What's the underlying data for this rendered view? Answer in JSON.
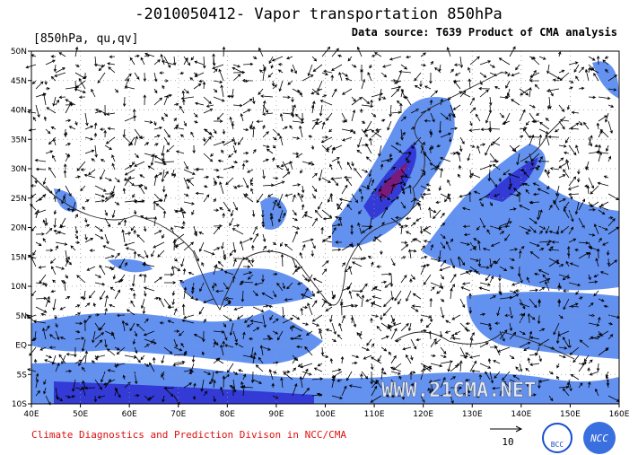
{
  "chart_data": {
    "type": "map",
    "title": "-2010050412- Vapor transportation 850hPa",
    "subtitle": "[850hPa, qu,qv]",
    "source": "Data source: T639 Product of CMA analysis",
    "footer": "Climate Diagnostics and Prediction Divison in NCC/CMA",
    "vector_scale": "10",
    "watermark": "WWW.21CMA.NET",
    "logos": [
      "BCC",
      "NCC"
    ],
    "xlim": [
      40,
      160
    ],
    "xticks": [
      {
        "value": 40,
        "label": "40E"
      },
      {
        "value": 50,
        "label": "50E"
      },
      {
        "value": 60,
        "label": "60E"
      },
      {
        "value": 70,
        "label": "70E"
      },
      {
        "value": 80,
        "label": "80E"
      },
      {
        "value": 90,
        "label": "90E"
      },
      {
        "value": 100,
        "label": "100E"
      },
      {
        "value": 110,
        "label": "110E"
      },
      {
        "value": 120,
        "label": "120E"
      },
      {
        "value": 130,
        "label": "130E"
      },
      {
        "value": 140,
        "label": "140E"
      },
      {
        "value": 150,
        "label": "150E"
      },
      {
        "value": 160,
        "label": "160E"
      }
    ],
    "ylim": [
      -10,
      50
    ],
    "yticks": [
      {
        "value": -10,
        "label": "10S"
      },
      {
        "value": -5,
        "label": "5S"
      },
      {
        "value": 0,
        "label": "EQ"
      },
      {
        "value": 5,
        "label": "5N"
      },
      {
        "value": 10,
        "label": "10N"
      },
      {
        "value": 15,
        "label": "15N"
      },
      {
        "value": 20,
        "label": "20N"
      },
      {
        "value": 25,
        "label": "25N"
      },
      {
        "value": 30,
        "label": "30N"
      },
      {
        "value": 35,
        "label": "35N"
      },
      {
        "value": 40,
        "label": "40N"
      },
      {
        "value": 45,
        "label": "45N"
      },
      {
        "value": 50,
        "label": "50N"
      }
    ],
    "grid": true
  }
}
